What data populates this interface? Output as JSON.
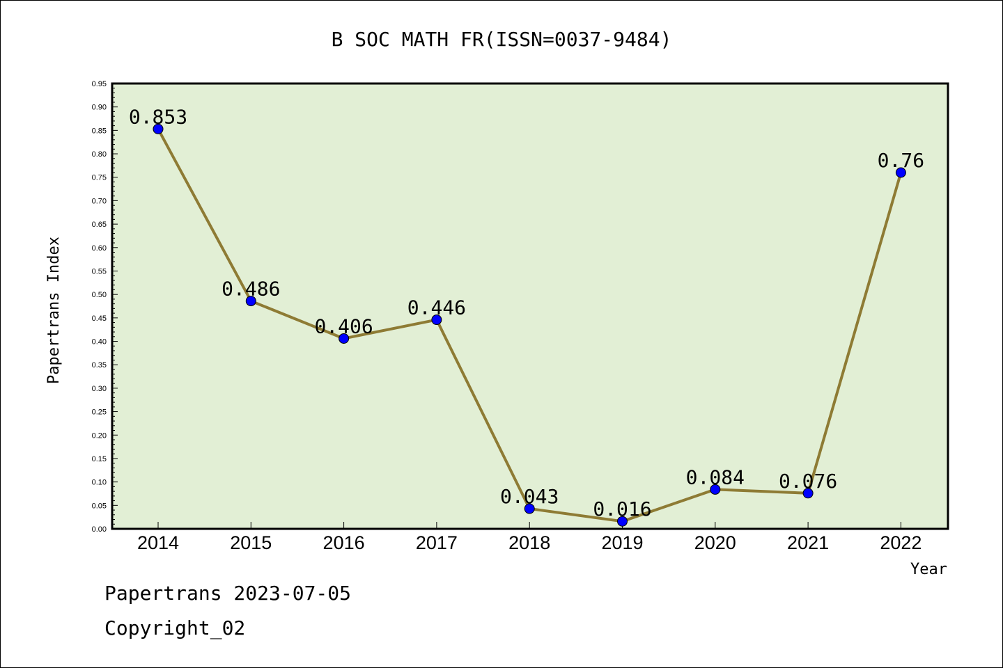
{
  "chart_data": {
    "type": "line",
    "title": "B SOC MATH FR(ISSN=0037-9484)",
    "xlabel": "Year",
    "ylabel": "Papertrans Index",
    "categories": [
      "2014",
      "2015",
      "2016",
      "2017",
      "2018",
      "2019",
      "2020",
      "2021",
      "2022"
    ],
    "series": [
      {
        "values": [
          0.853,
          0.486,
          0.406,
          0.446,
          0.043,
          0.016,
          0.084,
          0.076,
          0.76
        ]
      }
    ],
    "data_labels": [
      "0.853",
      "0.486",
      "0.406",
      "0.446",
      "0.043",
      "0.016",
      "0.084",
      "0.076",
      "0.76"
    ],
    "ylim": [
      0,
      0.95
    ],
    "yticks": [
      "0.00",
      "0.05",
      "0.10",
      "0.15",
      "0.20",
      "0.25",
      "0.30",
      "0.35",
      "0.40",
      "0.45",
      "0.50",
      "0.55",
      "0.60",
      "0.65",
      "0.70",
      "0.75",
      "0.80",
      "0.85",
      "0.90",
      "0.95"
    ],
    "grid": false,
    "colors": {
      "plot_background": "#e2efd5",
      "line": "#8e7b34",
      "marker": "#0000ff"
    }
  },
  "footer": {
    "line1": "Papertrans 2023-07-05",
    "line2": "Copyright_02"
  }
}
